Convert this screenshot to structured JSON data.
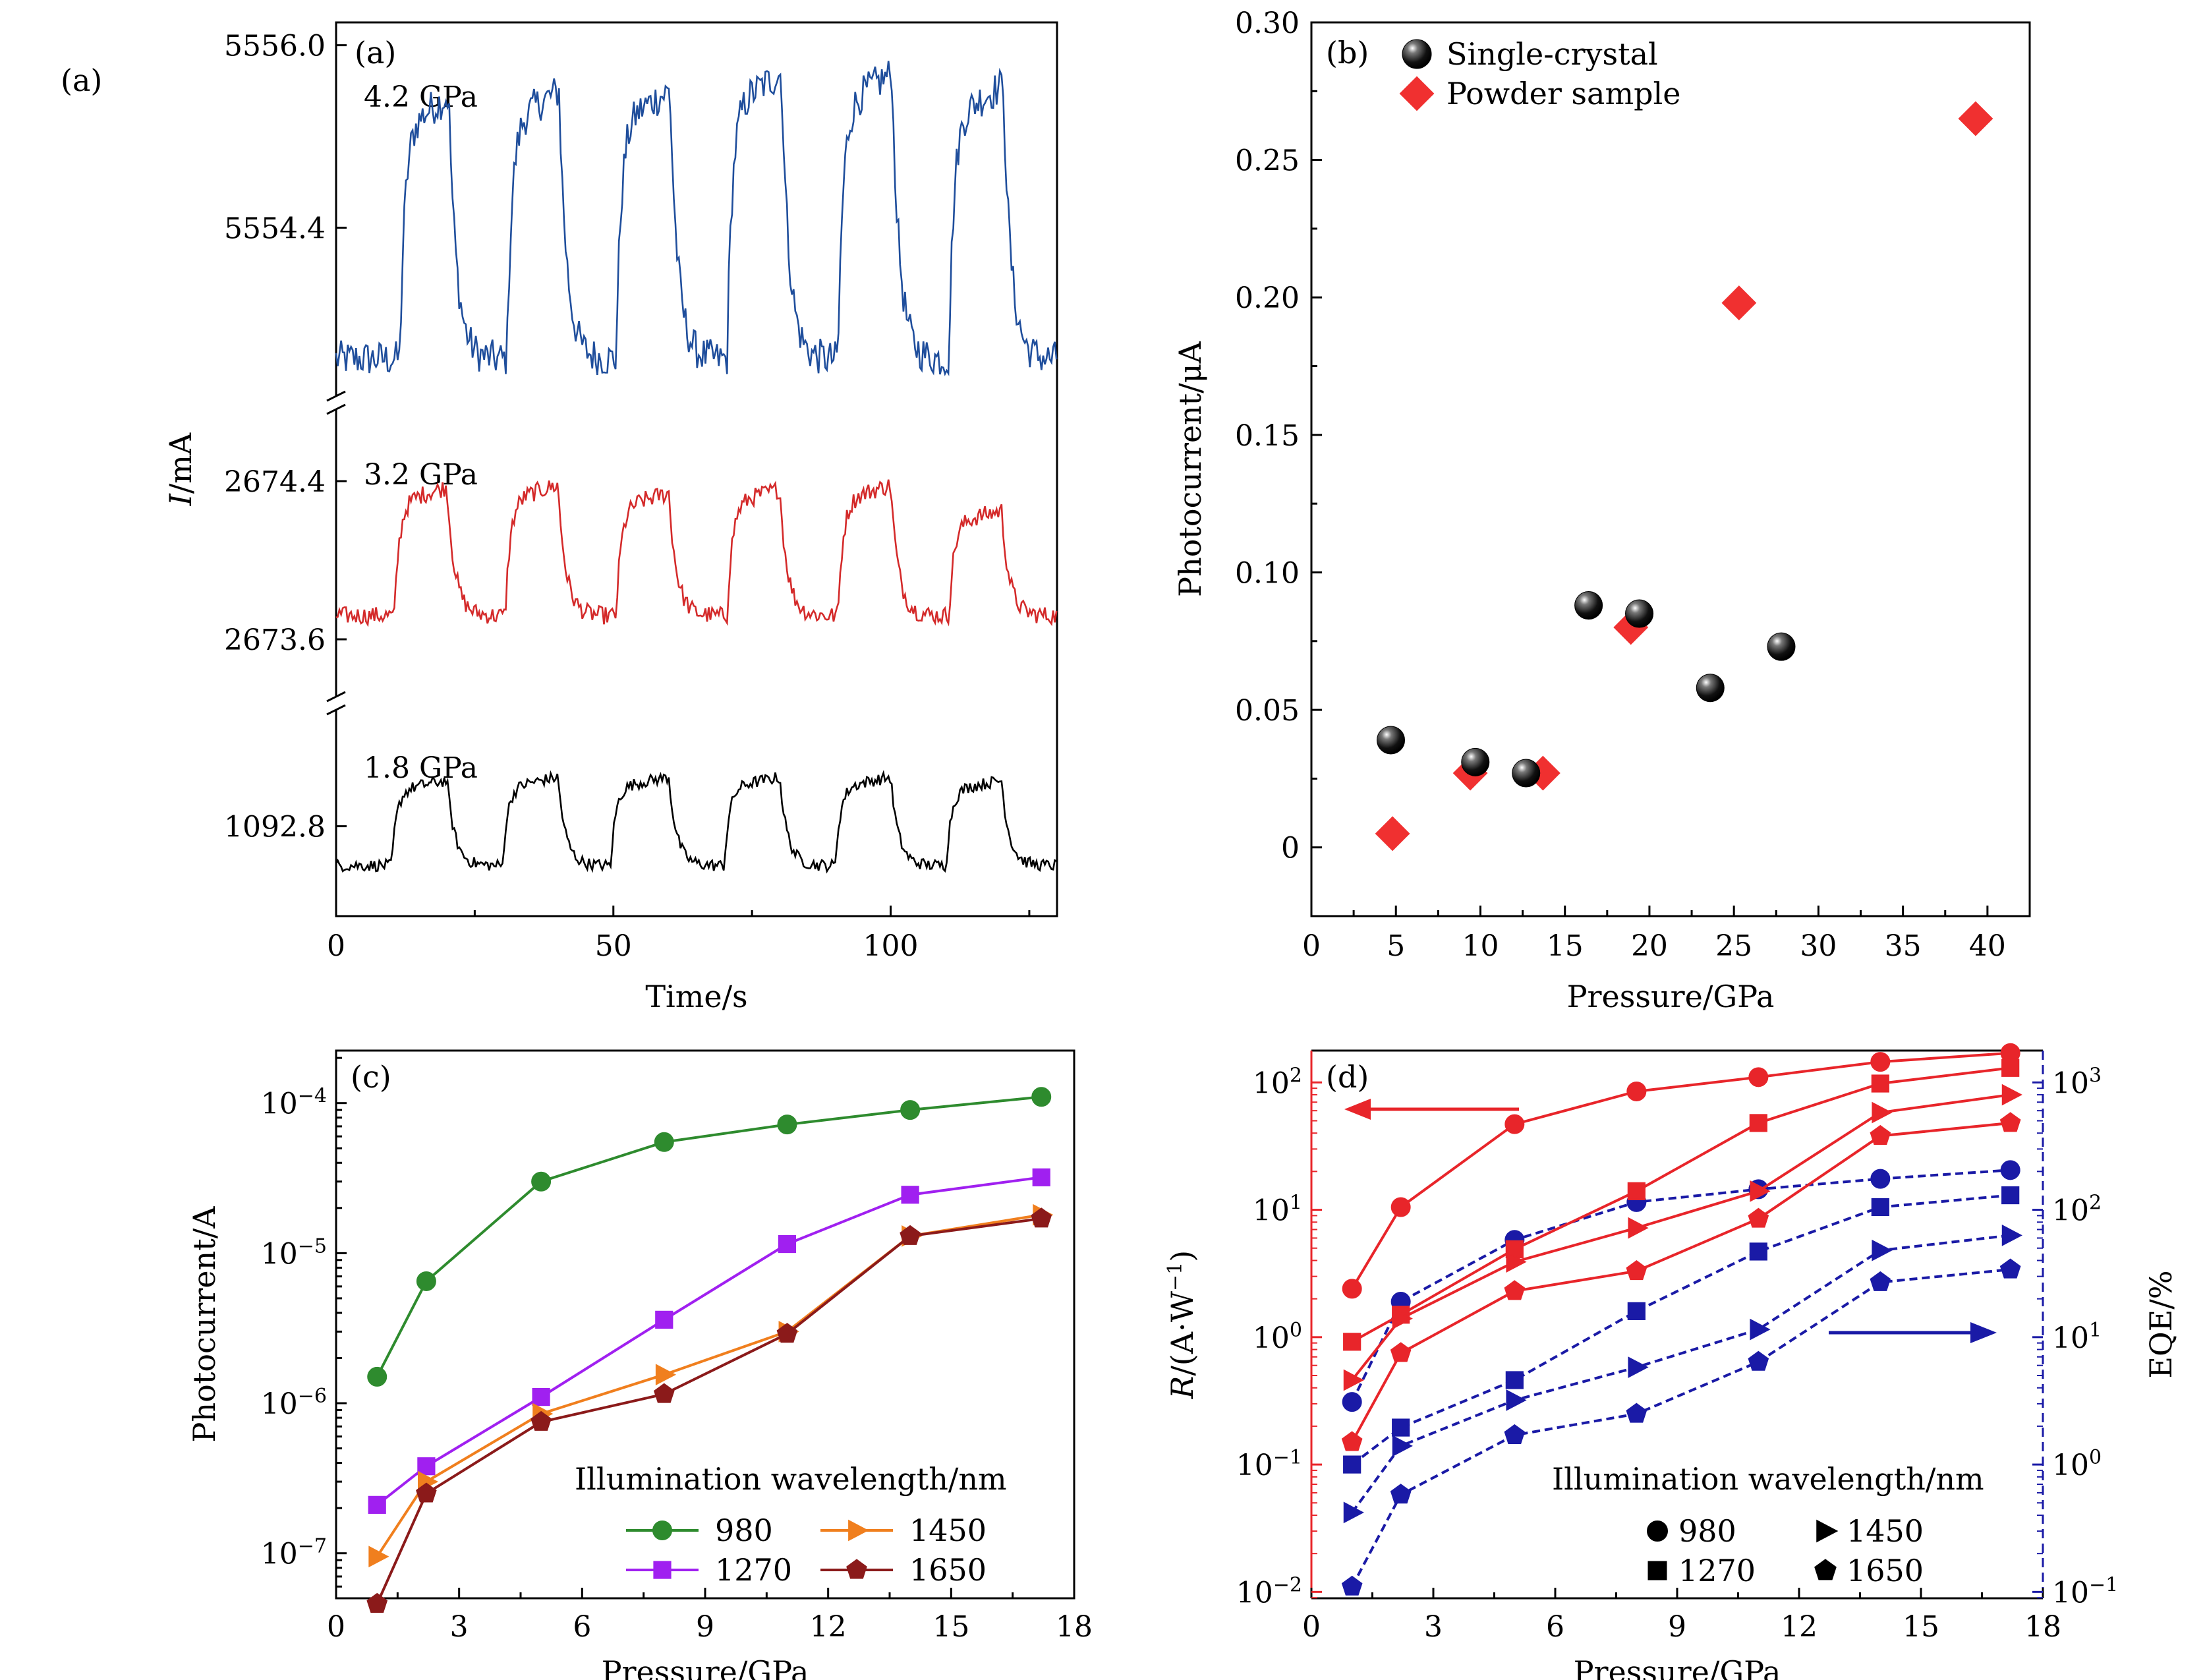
{
  "figure_label": "(a)",
  "colors": {
    "blue": "#1f4e9c",
    "red": "#d42a2a",
    "black": "#000000",
    "green": "#2e8b2e",
    "purple": "#a020f0",
    "orange": "#f07f1e",
    "darkred": "#8b1a1a",
    "red_marker": "#f03030",
    "navy": "#1a1aa6",
    "R_red": "#e8252a"
  },
  "chart_data": [
    {
      "id": "a",
      "type": "line",
      "panel_label": "(a)",
      "xlabel": "Time/s",
      "ylabel_italic": "I",
      "ylabel_rest": "/mA",
      "xlim": [
        0,
        130
      ],
      "xticks": [
        0,
        50,
        100
      ],
      "xtick_labels": [
        "0",
        "50",
        "100"
      ],
      "segments": [
        {
          "name": "4.2 GPa",
          "label": "4.2 GPa",
          "color": "blue",
          "ylim": [
            5552.9,
            5556.2
          ],
          "ticks": [
            5554.4,
            5556.0
          ],
          "tick_labels": [
            "5554.4",
            "5556.0"
          ],
          "low": 5553.25,
          "high": 5555.55,
          "pulses": [
            [
              11.5,
              20.3,
              5555.55
            ],
            [
              30.8,
              40.2,
              5555.6
            ],
            [
              50.5,
              60.2,
              5555.6
            ],
            [
              70.5,
              80.3,
              5555.75
            ],
            [
              90.5,
              100.2,
              5555.75
            ],
            [
              110.5,
              120.3,
              5555.65
            ]
          ]
        },
        {
          "name": "3.2 GPa",
          "label": "3.2 GPa",
          "color": "red",
          "ylim": [
            2673.3,
            2674.75
          ],
          "ticks": [
            2673.6,
            2674.4
          ],
          "tick_labels": [
            "2673.6",
            "2674.4"
          ],
          "low": 2673.72,
          "high": 2674.37,
          "pulses": [
            [
              10.5,
              20.0,
              2674.37
            ],
            [
              30.5,
              40.0,
              2674.38
            ],
            [
              50.5,
              60.0,
              2674.34
            ],
            [
              70.5,
              80.0,
              2674.36
            ],
            [
              90.5,
              100.0,
              2674.38
            ],
            [
              110.5,
              120.0,
              2674.25
            ]
          ]
        },
        {
          "name": "1.8 GPa",
          "label": "1.8 GPa",
          "color": "black",
          "ylim": [
            1092.25,
            1093.5
          ],
          "ticks": [
            1092.8
          ],
          "tick_labels": [
            "1092.8"
          ],
          "low": 1092.56,
          "high": 1093.08,
          "pulses": [
            [
              10.0,
              20.0,
              1093.08
            ],
            [
              30.0,
              40.0,
              1093.1
            ],
            [
              49.5,
              60.0,
              1093.1
            ],
            [
              70.0,
              80.0,
              1093.1
            ],
            [
              90.0,
              100.0,
              1093.1
            ],
            [
              110.0,
              120.0,
              1093.08
            ]
          ]
        }
      ]
    },
    {
      "id": "b",
      "type": "scatter",
      "panel_label": "(b)",
      "xlabel": "Pressure/GPa",
      "ylabel": "Photocurrent/μA",
      "xlim": [
        0,
        42.5
      ],
      "ylim": [
        -0.025,
        0.3
      ],
      "xticks": [
        0,
        5,
        10,
        15,
        20,
        25,
        30,
        35,
        40
      ],
      "xtick_labels": [
        "0",
        "5",
        "10",
        "15",
        "20",
        "25",
        "30",
        "35",
        "40"
      ],
      "yticks": [
        0,
        0.05,
        0.1,
        0.15,
        0.2,
        0.25,
        0.3
      ],
      "ytick_labels": [
        "0",
        "0.05",
        "0.10",
        "0.15",
        "0.20",
        "0.25",
        "0.30"
      ],
      "legend": [
        "Single-crystal",
        "Powder sample"
      ],
      "series": [
        {
          "name": "Single-crystal",
          "marker": "sphere",
          "color": "black",
          "x": [
            4.7,
            9.7,
            12.7,
            16.4,
            19.4,
            23.6,
            27.8
          ],
          "y": [
            0.039,
            0.031,
            0.027,
            0.088,
            0.085,
            0.058,
            0.073
          ]
        },
        {
          "name": "Powder sample",
          "marker": "diamond",
          "color": "red_marker",
          "x": [
            4.8,
            9.4,
            13.7,
            18.9,
            25.3,
            39.3
          ],
          "y": [
            0.005,
            0.027,
            0.027,
            0.08,
            0.198,
            0.265
          ]
        }
      ]
    },
    {
      "id": "c",
      "type": "line",
      "panel_label": "(c)",
      "xlabel": "Pressure/GPa",
      "ylabel": "Photocurrent/A",
      "yscale": "log",
      "xlim": [
        0,
        18
      ],
      "ylim_log10": [
        -7.3,
        -3.65
      ],
      "xticks": [
        0,
        3,
        6,
        9,
        12,
        15,
        18
      ],
      "xtick_labels": [
        "0",
        "3",
        "6",
        "9",
        "12",
        "15",
        "18"
      ],
      "yticks_log10": [
        -7,
        -6,
        -5,
        -4
      ],
      "ytick_labels": [
        "10",
        "10",
        "10",
        "10"
      ],
      "ytick_exps": [
        "−7",
        "−6",
        "−5",
        "−4"
      ],
      "legend_title": "Illumination wavelength/nm",
      "legend": [
        "980",
        "1270",
        "1450",
        "1650"
      ],
      "x": [
        1.0,
        2.2,
        5.0,
        8.0,
        11.0,
        14.0,
        17.2
      ],
      "series": [
        {
          "name": "980",
          "marker": "circle",
          "color": "green",
          "y": [
            1.5e-06,
            6.5e-06,
            3e-05,
            5.5e-05,
            7.2e-05,
            9e-05,
            0.00011
          ]
        },
        {
          "name": "1270",
          "marker": "square",
          "color": "purple",
          "y": [
            2.1e-07,
            3.8e-07,
            1.1e-06,
            3.6e-06,
            1.15e-05,
            2.45e-05,
            3.2e-05
          ]
        },
        {
          "name": "1450",
          "marker": "triangle",
          "color": "orange",
          "y": [
            9.5e-08,
            3e-07,
            8.5e-07,
            1.55e-06,
            3e-06,
            1.3e-05,
            1.8e-05
          ]
        },
        {
          "name": "1650",
          "marker": "pentagon",
          "color": "darkred",
          "y": [
            4.6e-08,
            2.5e-07,
            7.5e-07,
            1.15e-06,
            2.9e-06,
            1.3e-05,
            1.7e-05
          ]
        }
      ]
    },
    {
      "id": "d",
      "type": "line",
      "panel_label": "(d)",
      "xlabel": "Pressure/GPa",
      "ylabel_left_italic": "R",
      "ylabel_left_rest": "/(A·W",
      "ylabel_left_exp": "−1",
      "ylabel_left_close": ")",
      "ylabel_right": "EQE/%",
      "yscale": "log",
      "xlim": [
        0,
        18
      ],
      "ylim_left_log10": [
        -2.05,
        2.25
      ],
      "ylim_right_log10": [
        -1.05,
        3.25
      ],
      "xticks": [
        0,
        3,
        6,
        9,
        12,
        15,
        18
      ],
      "xtick_labels": [
        "0",
        "3",
        "6",
        "9",
        "12",
        "15",
        "18"
      ],
      "yticks_left_log10": [
        -2,
        -1,
        0,
        1,
        2
      ],
      "ytick_left_exps": [
        "−2",
        "−1",
        "0",
        "1",
        "2"
      ],
      "yticks_right_log10": [
        -1,
        0,
        1,
        2,
        3
      ],
      "ytick_right_exps": [
        "−1",
        "0",
        "1",
        "2",
        "3"
      ],
      "ytick_base": "10",
      "legend_title": "Illumination wavelength/nm",
      "legend": [
        "980",
        "1270",
        "1450",
        "1650"
      ],
      "x": [
        1.0,
        2.2,
        5.0,
        8.0,
        11.0,
        14.0,
        17.2
      ],
      "responsivity_series": [
        {
          "name": "980",
          "marker": "circle",
          "y": [
            2.4,
            10.5,
            47,
            85,
            110,
            145,
            170
          ]
        },
        {
          "name": "1270",
          "marker": "square",
          "y": [
            0.92,
            1.5,
            4.9,
            14,
            48,
            98,
            130
          ]
        },
        {
          "name": "1450",
          "marker": "triangle",
          "y": [
            0.46,
            1.4,
            3.9,
            7.2,
            14,
            58,
            80
          ]
        },
        {
          "name": "1650",
          "marker": "pentagon",
          "y": [
            0.15,
            0.75,
            2.3,
            3.3,
            8.5,
            38,
            48
          ]
        }
      ],
      "eqe_series": [
        {
          "name": "980",
          "marker": "circle",
          "y": [
            3.1,
            19,
            58,
            115,
            145,
            175,
            205
          ]
        },
        {
          "name": "1270",
          "marker": "square",
          "y": [
            1.0,
            1.95,
            4.6,
            16,
            47,
            105,
            130
          ]
        },
        {
          "name": "1450",
          "marker": "triangle",
          "y": [
            0.42,
            1.4,
            3.2,
            5.8,
            11.5,
            48,
            63
          ]
        },
        {
          "name": "1650",
          "marker": "pentagon",
          "y": [
            0.11,
            0.58,
            1.7,
            2.5,
            6.4,
            27,
            34
          ]
        }
      ]
    }
  ]
}
